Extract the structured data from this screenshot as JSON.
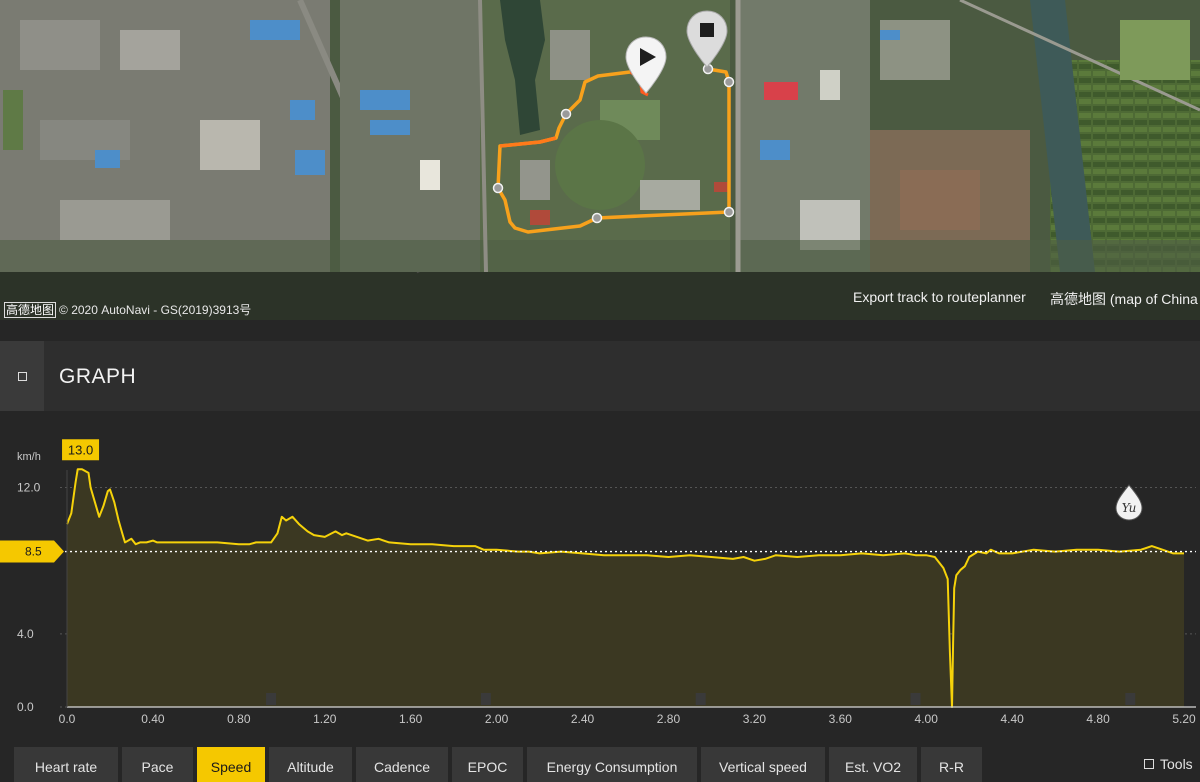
{
  "map": {
    "copyright_logo": "高德地图",
    "copyright_text": "© 2020 AutoNavi - GS(2019)3913号",
    "export_link": "Export track to routeplanner",
    "map_provider": "高德地图 (map of China"
  },
  "graph": {
    "title": "GRAPH",
    "tools_label": "Tools",
    "watermark": "Yu"
  },
  "tabs": [
    {
      "label": "Heart rate",
      "active": false
    },
    {
      "label": "Pace",
      "active": false
    },
    {
      "label": "Speed",
      "active": true
    },
    {
      "label": "Altitude",
      "active": false
    },
    {
      "label": "Cadence",
      "active": false
    },
    {
      "label": "EPOC",
      "active": false
    },
    {
      "label": "Energy Consumption",
      "active": false
    },
    {
      "label": "Vertical speed",
      "active": false
    },
    {
      "label": "Est. VO2",
      "active": false
    },
    {
      "label": "R-R",
      "active": false
    }
  ],
  "chart_data": {
    "type": "area",
    "ylabel": "km/h",
    "ylim": [
      0,
      14.6
    ],
    "xlim": [
      0,
      5.2
    ],
    "y_ticks": [
      "0.0",
      "4.0",
      "8.5",
      "12.0"
    ],
    "x_ticks": [
      "0.0",
      "0.40",
      "0.80",
      "1.20",
      "1.60",
      "2.00",
      "2.40",
      "2.80",
      "3.20",
      "3.60",
      "4.00",
      "4.40",
      "4.80",
      "5.20"
    ],
    "max_label": "13.0",
    "max_value": 13.0,
    "max_x": 0.07,
    "avg_label": "8.5",
    "avg_value": 8.5,
    "line_color": "#f5d20a",
    "fill_color": "#3b3822",
    "series": [
      {
        "x": [
          0.0,
          0.02,
          0.04,
          0.05,
          0.07,
          0.1,
          0.11,
          0.13,
          0.15,
          0.17,
          0.19,
          0.2,
          0.22,
          0.24,
          0.26,
          0.27,
          0.3,
          0.32,
          0.34,
          0.35,
          0.37,
          0.4,
          0.42,
          0.45,
          0.5,
          0.6,
          0.7,
          0.8,
          0.85,
          0.88,
          0.9,
          0.95,
          0.98,
          1.0,
          1.02,
          1.05,
          1.08,
          1.1,
          1.12,
          1.15,
          1.2,
          1.25,
          1.28,
          1.3,
          1.35,
          1.4,
          1.45,
          1.5,
          1.6,
          1.7,
          1.8,
          1.9,
          1.94,
          2.0,
          2.1,
          2.15,
          2.2,
          2.3,
          2.4,
          2.5,
          2.6,
          2.7,
          2.8,
          2.9,
          3.0,
          3.1,
          3.15,
          3.2,
          3.25,
          3.3,
          3.4,
          3.5,
          3.6,
          3.7,
          3.8,
          3.9,
          3.95,
          4.0,
          4.04,
          4.08,
          4.1,
          4.11,
          4.12,
          4.125,
          4.13,
          4.14,
          4.16,
          4.18,
          4.2,
          4.24,
          4.28,
          4.3,
          4.34,
          4.4,
          4.5,
          4.6,
          4.7,
          4.8,
          4.9,
          5.0,
          5.05,
          5.1,
          5.15,
          5.2
        ],
        "values": [
          10.0,
          10.6,
          12.3,
          13.0,
          13.0,
          12.8,
          12.0,
          11.2,
          10.4,
          11.0,
          11.8,
          11.9,
          11.2,
          10.2,
          9.4,
          9.0,
          9.2,
          8.9,
          9.0,
          9.0,
          9.0,
          9.1,
          9.0,
          9.0,
          9.0,
          9.0,
          9.0,
          8.9,
          8.9,
          9.0,
          9.0,
          9.0,
          9.5,
          10.4,
          10.2,
          10.4,
          10.0,
          9.8,
          9.6,
          9.4,
          9.3,
          9.6,
          9.4,
          9.5,
          9.3,
          9.1,
          9.2,
          9.0,
          8.9,
          8.9,
          8.8,
          8.8,
          8.6,
          8.6,
          8.5,
          8.5,
          8.4,
          8.5,
          8.4,
          8.3,
          8.3,
          8.3,
          8.2,
          8.3,
          8.2,
          8.1,
          8.2,
          8.0,
          8.1,
          8.3,
          8.2,
          8.3,
          8.3,
          8.4,
          8.3,
          8.4,
          8.3,
          8.3,
          8.2,
          7.6,
          7.0,
          3.0,
          0.0,
          3.5,
          6.5,
          7.2,
          7.5,
          7.7,
          8.2,
          8.5,
          8.4,
          8.6,
          8.4,
          8.4,
          8.6,
          8.5,
          8.6,
          8.6,
          8.5,
          8.6,
          8.8,
          8.6,
          8.4,
          8.4
        ]
      }
    ]
  }
}
